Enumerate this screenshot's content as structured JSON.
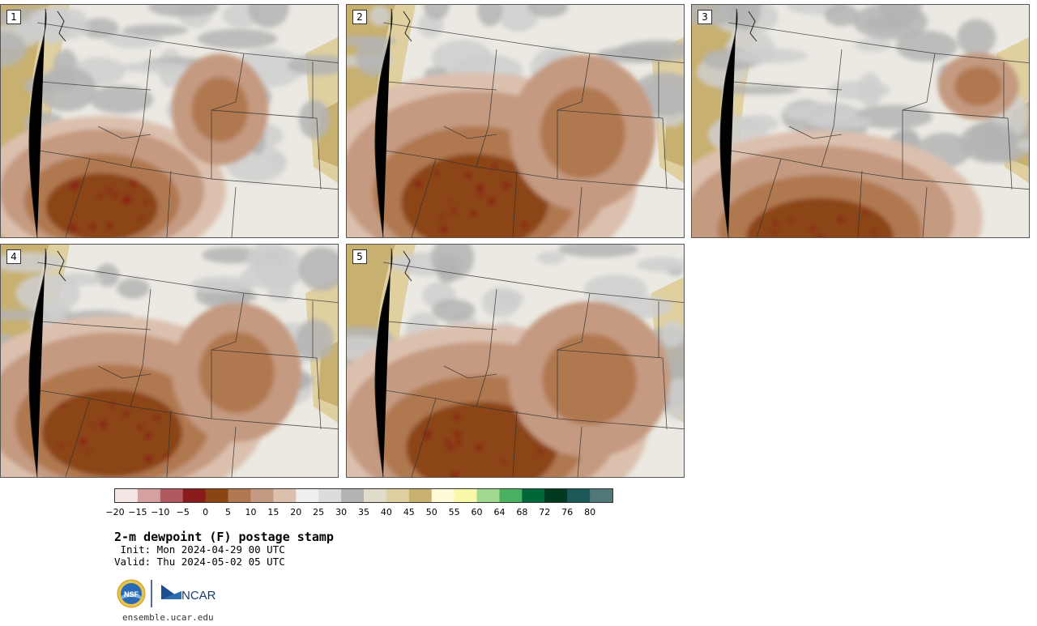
{
  "panels": [
    {
      "number": "1"
    },
    {
      "number": "2"
    },
    {
      "number": "3"
    },
    {
      "number": "4"
    },
    {
      "number": "5"
    }
  ],
  "colorbar": {
    "colors": [
      "#f5e6e6",
      "#d4a0a0",
      "#b05a60",
      "#8b1a1a",
      "#8b4513",
      "#b07850",
      "#c49a80",
      "#dcc0ae",
      "#eeeeee",
      "#dcdcdc",
      "#b4b4b4",
      "#e0dccc",
      "#e0d0a0",
      "#c8b070",
      "#fffbd8",
      "#f8f8a8",
      "#a0d890",
      "#48b060",
      "#006838",
      "#003820",
      "#1c5858",
      "#507878"
    ],
    "tick_labels": [
      "−20",
      "−15",
      "−10",
      "−5",
      "0",
      "5",
      "10",
      "15",
      "20",
      "25",
      "30",
      "35",
      "40",
      "45",
      "50",
      "55",
      "60",
      "64",
      "68",
      "72",
      "76",
      "80"
    ]
  },
  "title": "2-m dewpoint (F) postage stamp",
  "init": " Init: Mon 2024-04-29 00 UTC",
  "valid": "Valid: Thu 2024-05-02 05 UTC",
  "footer_url": "ensemble.ucar.edu",
  "logos": {
    "nsf": "NSF",
    "ncar": "NCAR"
  },
  "legend_colors": {
    "brown_dry": "#8b4513",
    "gray_mid": "#b4b4b4",
    "tan": "#c8b070"
  }
}
